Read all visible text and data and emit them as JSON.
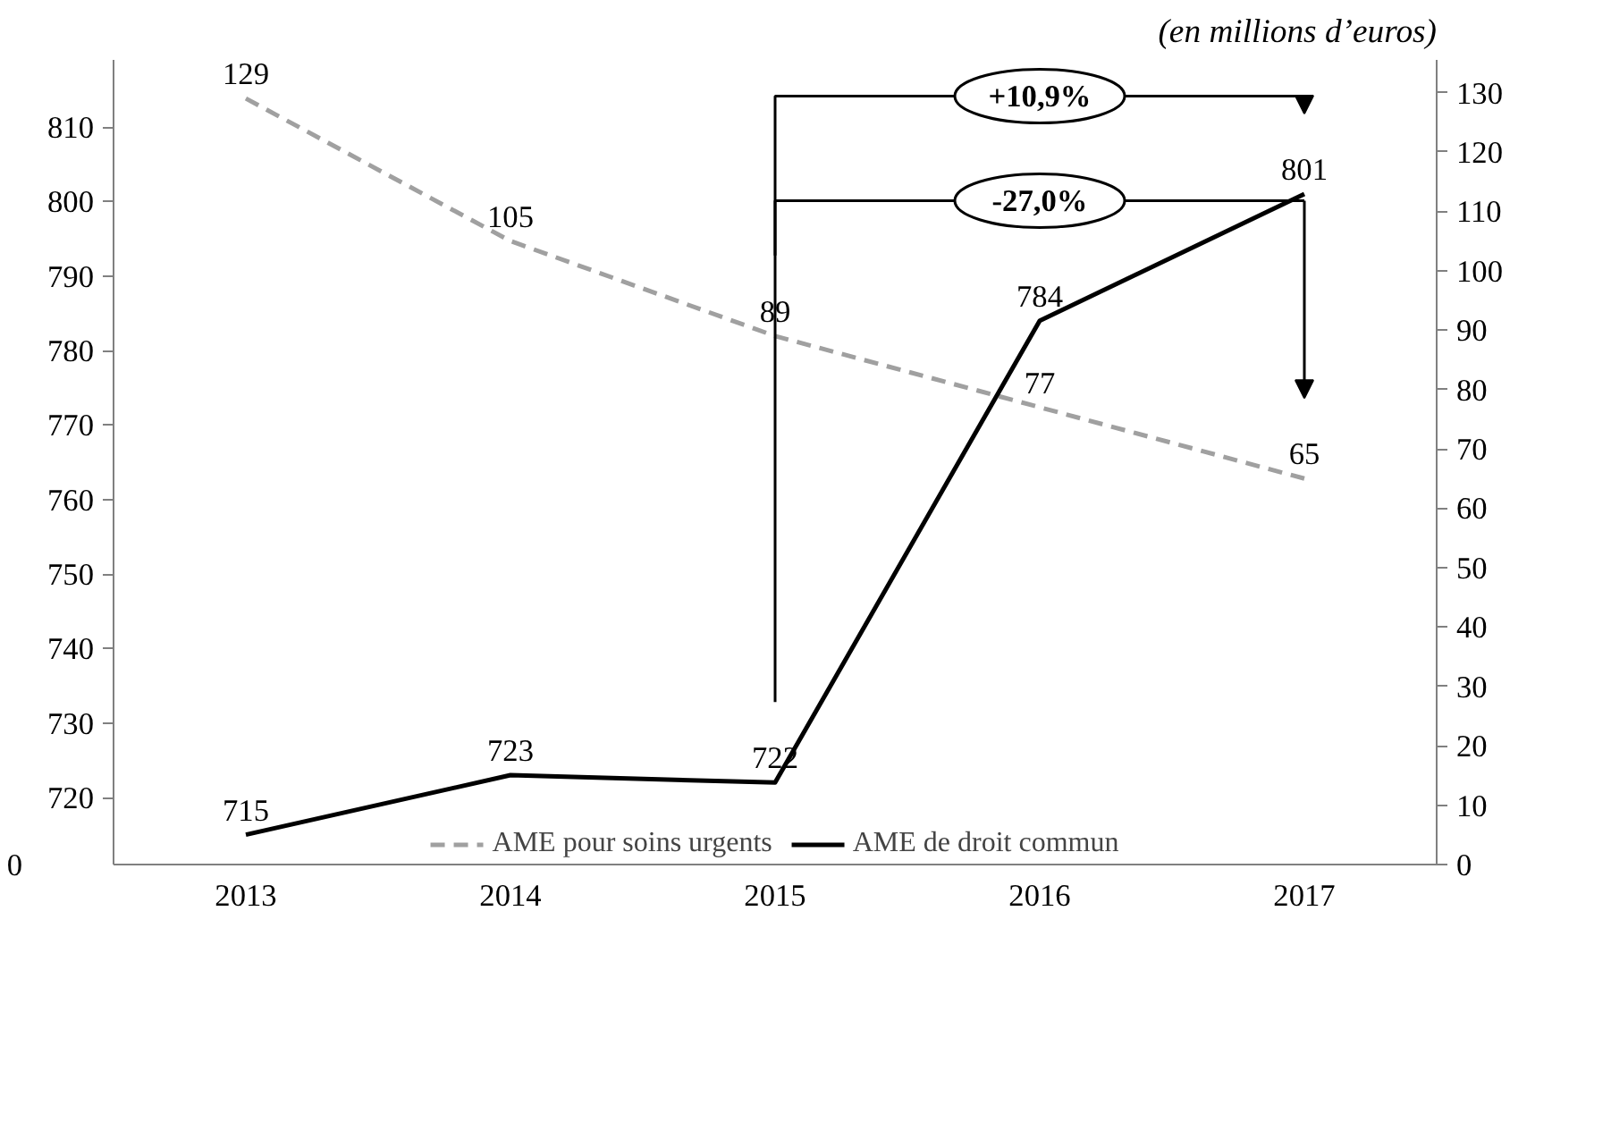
{
  "chart_data": {
    "type": "line",
    "categories": [
      "2013",
      "2014",
      "2015",
      "2016",
      "2017"
    ],
    "series": [
      {
        "name": "AME pour soins urgents",
        "color": "#a0a0a0",
        "values": [
          129,
          105,
          89,
          77,
          65
        ],
        "axis": "y2",
        "line_style": "dashed"
      },
      {
        "name": "AME de droit commun",
        "color": "#000000",
        "values": [
          715,
          723,
          722,
          784,
          801
        ],
        "line_style": "solid"
      }
    ],
    "ylim": [
      711,
      819
    ],
    "yticks": [
      720,
      730,
      740,
      750,
      760,
      770,
      780,
      790,
      800,
      810
    ],
    "y2lim": [
      0,
      135.5
    ],
    "y2ticks": [
      0,
      10,
      20,
      30,
      40,
      50,
      60,
      70,
      80,
      90,
      100,
      110,
      120,
      130
    ],
    "data_labels": true,
    "grid": false,
    "legend": "bottom",
    "marker": "none",
    "annotations": [
      "(en millions d’euros)",
      "0",
      "-27,0%",
      "+10,9%"
    ]
  }
}
